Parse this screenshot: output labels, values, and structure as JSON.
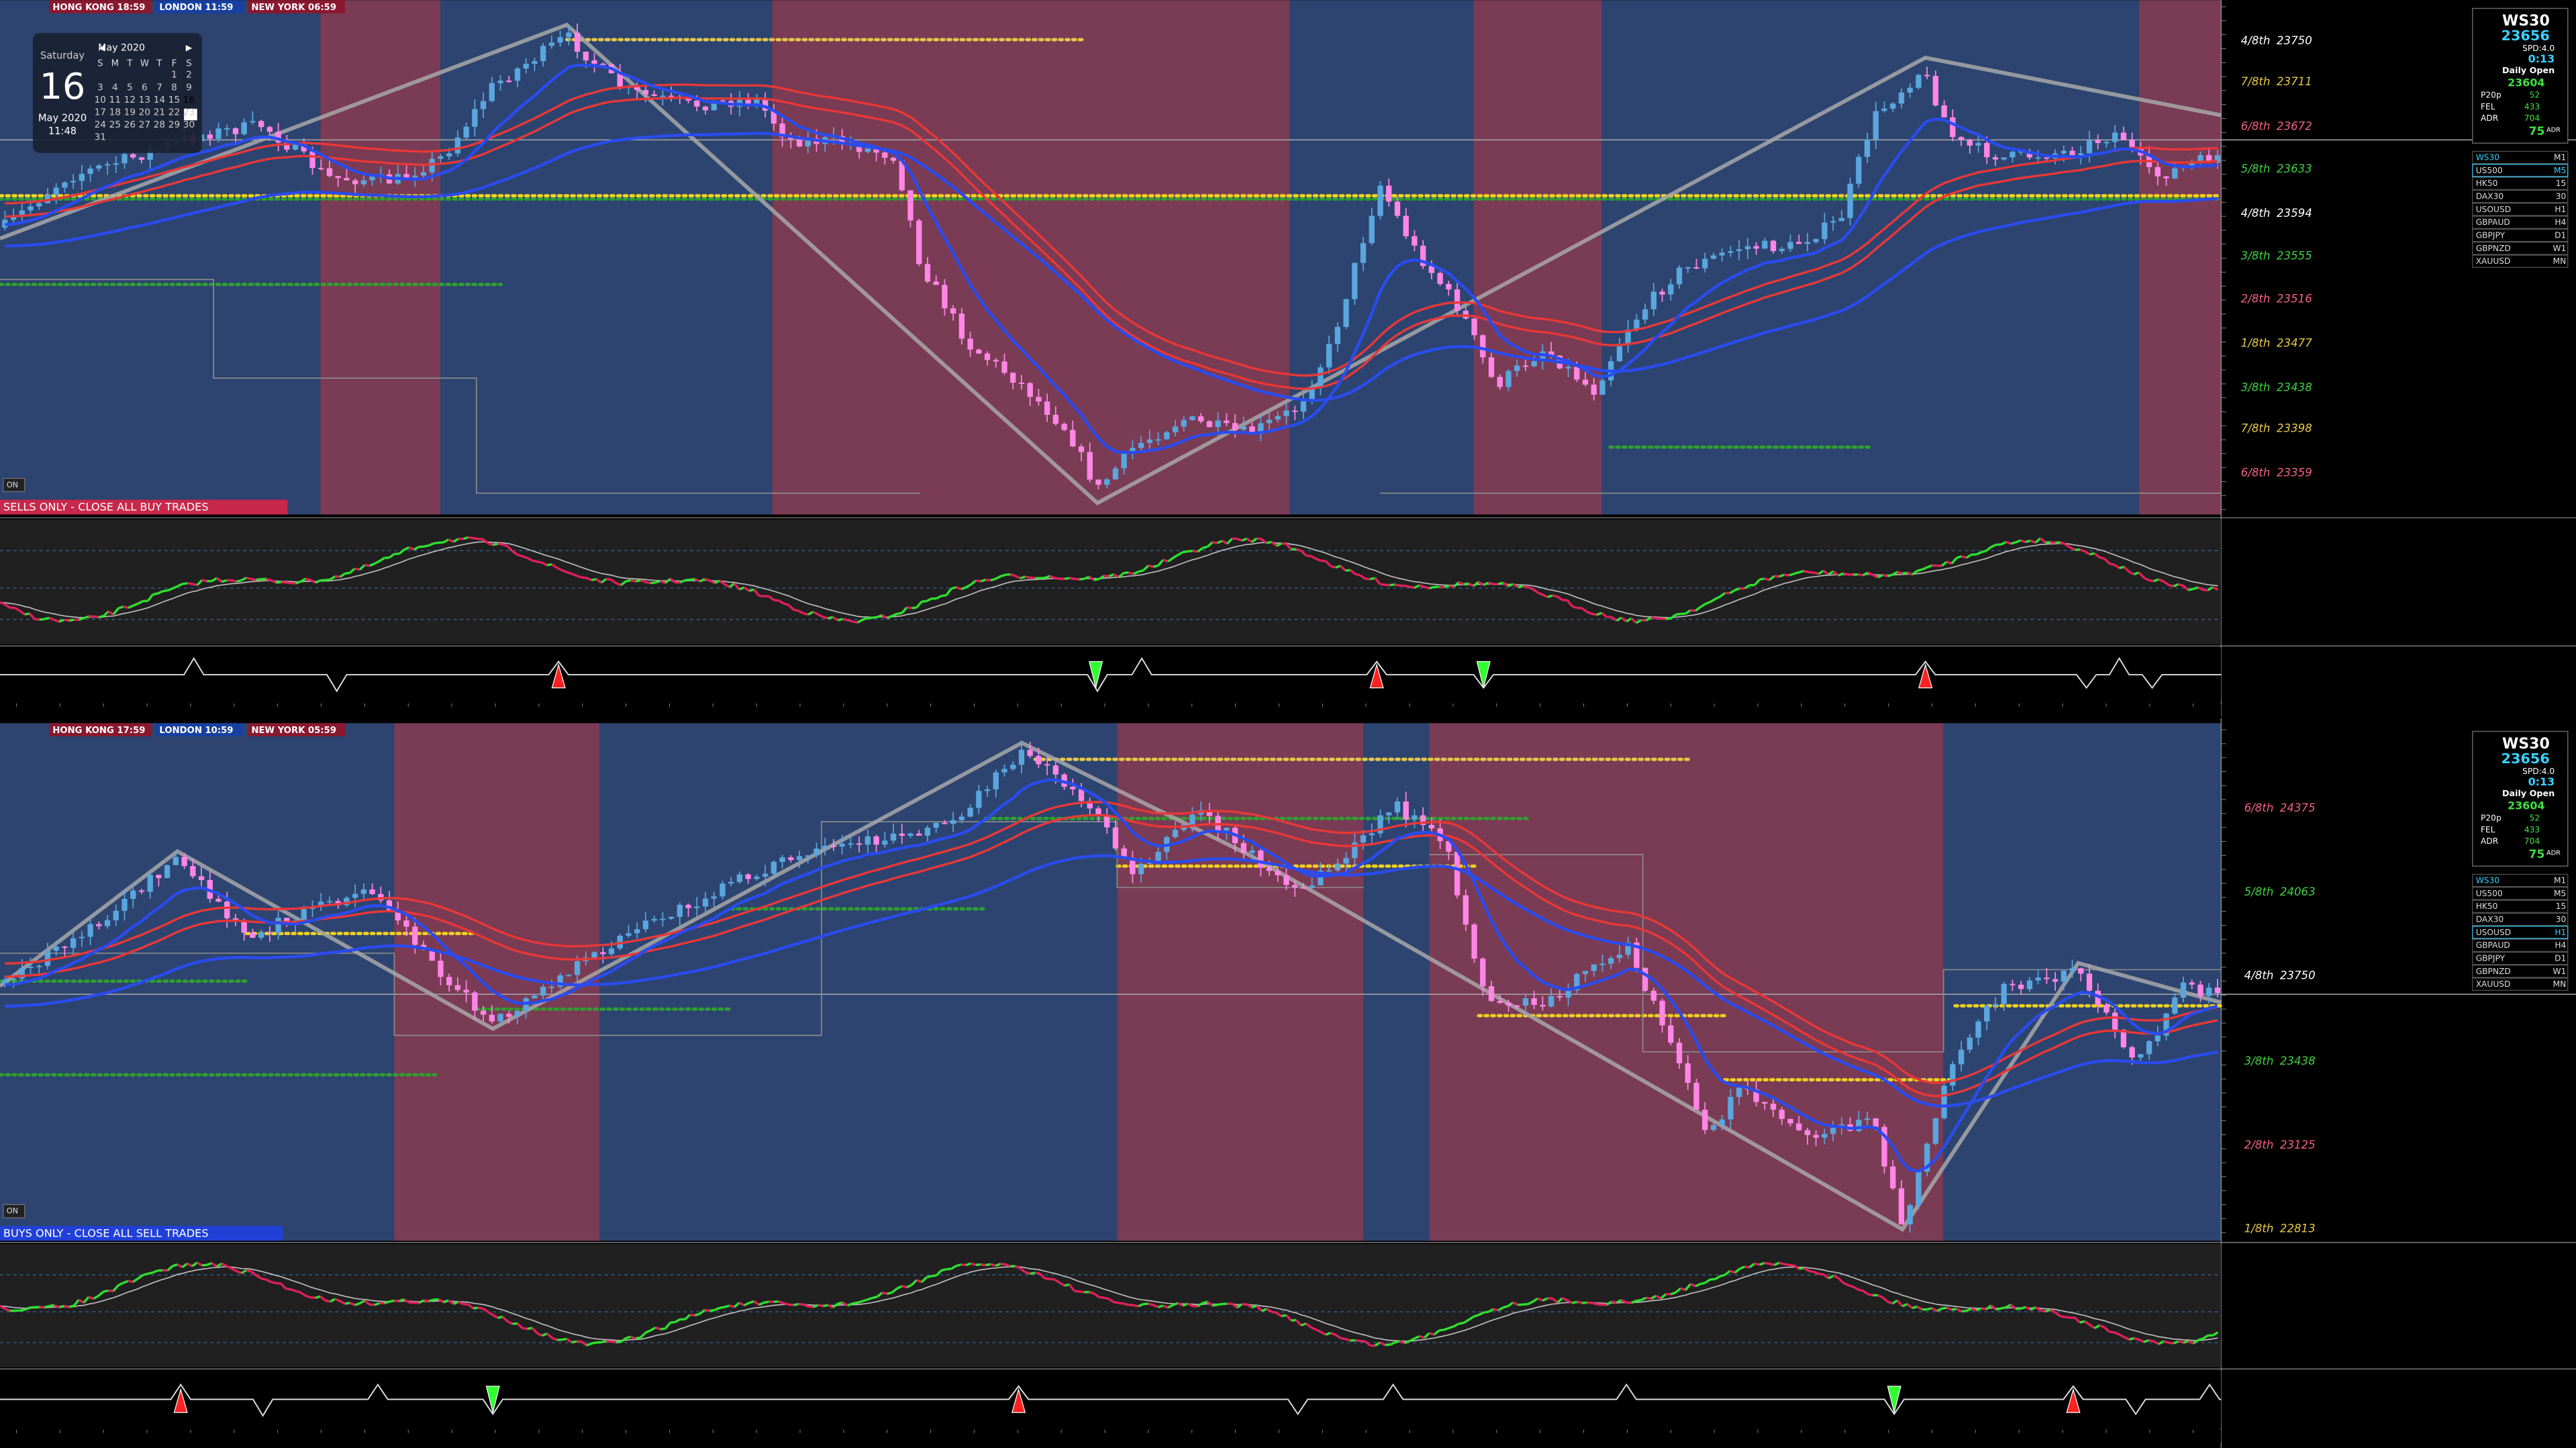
{
  "top_chart": {
    "sessions": [
      "HONG KONG 18:59",
      "LONDON 11:59",
      "NEW YORK 06:59"
    ],
    "calendar": {
      "month": "May 2020",
      "weekday": "Saturday",
      "day": "16",
      "date": "May 2020",
      "time": "11:48",
      "weekdays": [
        "S",
        "M",
        "T",
        "W",
        "T",
        "F",
        "S"
      ],
      "weeks": [
        [
          "",
          "",
          "",
          "",
          "",
          "1",
          "2"
        ],
        [
          "3",
          "4",
          "5",
          "6",
          "7",
          "8",
          "9"
        ],
        [
          "10",
          "11",
          "12",
          "13",
          "14",
          "15",
          "16"
        ],
        [
          "17",
          "18",
          "19",
          "20",
          "21",
          "22",
          "23"
        ],
        [
          "24",
          "25",
          "26",
          "27",
          "28",
          "29",
          "30"
        ],
        [
          "31",
          "",
          "",
          "",
          "",
          "",
          ""
        ]
      ]
    },
    "banner": "SELLS ONLY - CLOSE ALL BUY TRADES",
    "toggle": "ON",
    "levels": [
      {
        "label": "4/8th",
        "price": "23750",
        "color": "#ffffff"
      },
      {
        "label": "7/8th",
        "price": "23711",
        "color": "#e6c84a"
      },
      {
        "label": "6/8th",
        "price": "23672",
        "color": "#f06080"
      },
      {
        "label": "5/8th",
        "price": "23633",
        "color": "#40d040"
      },
      {
        "label": "4/8th",
        "price": "23594",
        "color": "#ffffff"
      },
      {
        "label": "3/8th",
        "price": "23555",
        "color": "#40d040"
      },
      {
        "label": "2/8th",
        "price": "23516",
        "color": "#f06080"
      },
      {
        "label": "1/8th",
        "price": "23477",
        "color": "#e6c84a"
      },
      {
        "label": "3/8th",
        "price": "23438",
        "color": "#40d040"
      },
      {
        "label": "7/8th",
        "price": "23398",
        "color": "#e6c84a"
      },
      {
        "label": "6/8th",
        "price": "23359",
        "color": "#f06080"
      }
    ],
    "info": {
      "symbol": "WS30",
      "price": "23656",
      "spread": "SPD:4.0",
      "timer": "0:13",
      "open_label": "Daily Open",
      "open": "23604",
      "rows": [
        [
          "P20p",
          "52"
        ],
        [
          "FEL",
          "433"
        ],
        [
          "ADR",
          "704"
        ]
      ],
      "pct": "75",
      "pct_label": "ADR"
    },
    "symbols": [
      [
        "WS30",
        "M1"
      ],
      [
        "US500",
        "M5"
      ],
      [
        "HK50",
        "15"
      ],
      [
        "DAX30",
        "30"
      ],
      [
        "USOUSD",
        "H1"
      ],
      [
        "GBPAUD",
        "H4"
      ],
      [
        "GBPJPY",
        "D1"
      ],
      [
        "GBPNZD",
        "W1"
      ],
      [
        "XAUUSD",
        "MN"
      ]
    ]
  },
  "bottom_chart": {
    "sessions": [
      "HONG KONG 17:59",
      "LONDON 10:59",
      "NEW YORK 05:59"
    ],
    "banner": "BUYS ONLY - CLOSE ALL SELL TRADES",
    "toggle": "ON",
    "levels": [
      {
        "label": "6/8th",
        "price": "24375",
        "color": "#f06080"
      },
      {
        "label": "5/8th",
        "price": "24063",
        "color": "#40d040"
      },
      {
        "label": "4/8th",
        "price": "23750",
        "color": "#ffffff"
      },
      {
        "label": "3/8th",
        "price": "23438",
        "color": "#40d040"
      },
      {
        "label": "2/8th",
        "price": "23125",
        "color": "#f06080"
      },
      {
        "label": "1/8th",
        "price": "22813",
        "color": "#e6c84a"
      }
    ],
    "info": {
      "symbol": "WS30",
      "price": "23656",
      "spread": "SPD:4.0",
      "timer": "0:13",
      "open_label": "Daily Open",
      "open": "23604",
      "rows": [
        [
          "P20p",
          "52"
        ],
        [
          "FEL",
          "433"
        ],
        [
          "ADR",
          "704"
        ]
      ],
      "pct": "75",
      "pct_label": "ADR"
    },
    "symbols": [
      [
        "WS30",
        "M1"
      ],
      [
        "US500",
        "M5"
      ],
      [
        "HK50",
        "15"
      ],
      [
        "DAX30",
        "30"
      ],
      [
        "USOUSD",
        "H1"
      ],
      [
        "GBPAUD",
        "H4"
      ],
      [
        "GBPJPY",
        "D1"
      ],
      [
        "GBPNZD",
        "W1"
      ],
      [
        "XAUUSD",
        "MN"
      ]
    ]
  }
}
